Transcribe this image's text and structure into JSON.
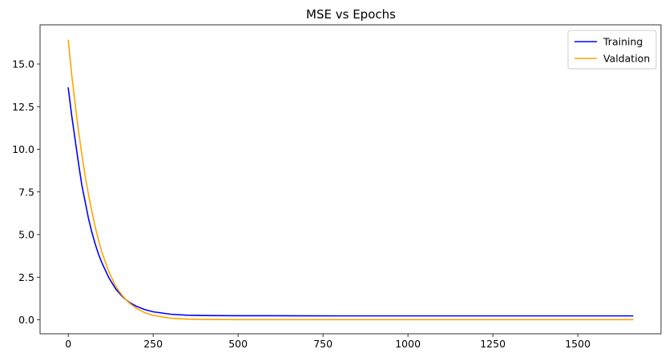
{
  "chart_data": {
    "type": "line",
    "title": "MSE vs Epochs",
    "xlabel": "",
    "ylabel": "",
    "xlim": [
      -83,
      1745
    ],
    "ylim": [
      -0.82,
      17.3
    ],
    "xticks": [
      0,
      250,
      500,
      750,
      1000,
      1250,
      1500
    ],
    "xtick_labels": [
      "0",
      "250",
      "500",
      "750",
      "1000",
      "1250",
      "1500"
    ],
    "yticks": [
      0.0,
      2.5,
      5.0,
      7.5,
      10.0,
      12.5,
      15.0
    ],
    "ytick_labels": [
      "0.0",
      "2.5",
      "5.0",
      "7.5",
      "10.0",
      "12.5",
      "15.0"
    ],
    "grid": false,
    "legend_position": "top-right",
    "series": [
      {
        "name": "Training",
        "color": "#0000ff",
        "x": [
          0,
          10,
          20,
          30,
          40,
          50,
          60,
          70,
          80,
          90,
          100,
          120,
          140,
          160,
          180,
          200,
          225,
          250,
          300,
          350,
          400,
          500,
          600,
          800,
          1000,
          1200,
          1400,
          1662
        ],
        "y": [
          13.6,
          12.0,
          10.6,
          9.2,
          7.9,
          6.9,
          5.9,
          5.1,
          4.4,
          3.8,
          3.3,
          2.45,
          1.8,
          1.35,
          1.02,
          0.8,
          0.6,
          0.47,
          0.33,
          0.27,
          0.25,
          0.24,
          0.24,
          0.23,
          0.23,
          0.23,
          0.23,
          0.23
        ]
      },
      {
        "name": "Valdation",
        "color": "#ffa500",
        "x": [
          0,
          10,
          20,
          30,
          40,
          50,
          60,
          70,
          80,
          90,
          100,
          120,
          140,
          160,
          180,
          200,
          225,
          250,
          300,
          350,
          400,
          500,
          600,
          800,
          1000,
          1200,
          1400,
          1662
        ],
        "y": [
          16.4,
          14.4,
          12.7,
          11.1,
          9.7,
          8.4,
          7.3,
          6.3,
          5.4,
          4.6,
          3.9,
          2.8,
          1.95,
          1.4,
          0.98,
          0.68,
          0.42,
          0.26,
          0.1,
          0.04,
          0.02,
          0.01,
          0.01,
          0.01,
          0.01,
          0.01,
          0.01,
          0.01
        ]
      }
    ]
  }
}
